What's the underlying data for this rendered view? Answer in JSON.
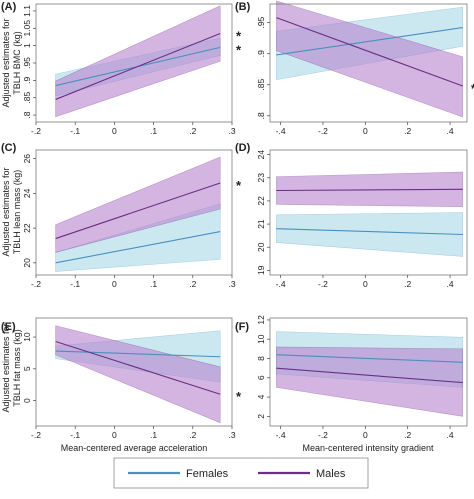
{
  "colors": {
    "females_line": "#4a8fbe",
    "females_band": "#a9d9e8",
    "males_line": "#6a2f86",
    "males_band": "#b783cf",
    "frame": "#7a7a7a"
  },
  "legend": {
    "items": [
      {
        "label": "Females",
        "color": "#4a8fbe"
      },
      {
        "label": "Males",
        "color": "#6a2f86"
      }
    ]
  },
  "chart_data": [
    {
      "panel": "(A)",
      "type": "line",
      "ylabel": "Adjusted estimates for TBLH BMC (kg)",
      "ylabel_lines": [
        "Adjusted estimates for",
        "TBLH BMC (kg)"
      ],
      "xlabel": "",
      "xlim": [
        -0.2,
        0.3
      ],
      "ylim": [
        0.78,
        1.12
      ],
      "xticks": [
        -0.2,
        -0.1,
        0,
        0.1,
        0.2,
        0.3
      ],
      "xtick_labels": [
        "-.2",
        "-.1",
        "0",
        ".1",
        ".2",
        ".3"
      ],
      "yticks": [
        0.8,
        0.85,
        0.9,
        0.95,
        1.0,
        1.05,
        1.1
      ],
      "ytick_labels": [
        ".8",
        ".85",
        ".9",
        ".95",
        "1",
        "1.05",
        "1.1"
      ],
      "series": [
        {
          "name": "Females",
          "x": [
            -0.15,
            0.27
          ],
          "y": [
            0.885,
            0.995
          ],
          "lower": [
            0.855,
            0.972
          ],
          "upper": [
            0.918,
            1.022
          ]
        },
        {
          "name": "Males",
          "x": [
            -0.15,
            0.27
          ],
          "y": [
            0.845,
            1.035
          ],
          "lower": [
            0.795,
            0.955
          ],
          "upper": [
            0.898,
            1.115
          ]
        }
      ],
      "annotations": [
        {
          "text": "*",
          "series": "Males"
        },
        {
          "text": "*",
          "series": "Females"
        }
      ]
    },
    {
      "panel": "(B)",
      "type": "line",
      "ylabel": "",
      "xlabel": "",
      "xlim": [
        -0.45,
        0.48
      ],
      "ylim": [
        0.79,
        0.98
      ],
      "xticks": [
        -0.4,
        -0.2,
        0,
        0.2,
        0.4
      ],
      "xtick_labels": [
        "-.4",
        "-.2",
        "0",
        ".2",
        ".4"
      ],
      "yticks": [
        0.8,
        0.85,
        0.9,
        0.95
      ],
      "ytick_labels": [
        ".8",
        ".85",
        ".9",
        ".95"
      ],
      "series": [
        {
          "name": "Females",
          "x": [
            -0.42,
            0.46
          ],
          "y": [
            0.898,
            0.942
          ],
          "lower": [
            0.858,
            0.912
          ],
          "upper": [
            0.936,
            0.975
          ]
        },
        {
          "name": "Males",
          "x": [
            -0.42,
            0.46
          ],
          "y": [
            0.958,
            0.848
          ],
          "lower": [
            0.905,
            0.798
          ],
          "upper": [
            0.985,
            0.895
          ]
        }
      ],
      "annotations": [
        {
          "text": "*",
          "series": "Males"
        }
      ]
    },
    {
      "panel": "(C)",
      "type": "line",
      "ylabel": "Adjusted estimates for TBLH lean mass (kg)",
      "ylabel_lines": [
        "Adjusted estimates for",
        "TBLH lean mass (kg)"
      ],
      "xlabel": "",
      "xlim": [
        -0.2,
        0.3
      ],
      "ylim": [
        19.3,
        26.5
      ],
      "xticks": [
        -0.2,
        -0.1,
        0,
        0.1,
        0.2,
        0.3
      ],
      "xtick_labels": [
        "-.2",
        "-.1",
        "0",
        ".1",
        ".2",
        ".3"
      ],
      "yticks": [
        20,
        22,
        24,
        26
      ],
      "ytick_labels": [
        "20",
        "22",
        "24",
        "26"
      ],
      "series": [
        {
          "name": "Females",
          "x": [
            -0.15,
            0.27
          ],
          "y": [
            20.0,
            21.8
          ],
          "lower": [
            19.5,
            20.2
          ],
          "upper": [
            20.6,
            23.4
          ]
        },
        {
          "name": "Males",
          "x": [
            -0.15,
            0.27
          ],
          "y": [
            21.4,
            24.6
          ],
          "lower": [
            20.6,
            23.1
          ],
          "upper": [
            22.2,
            26.1
          ]
        }
      ],
      "annotations": [
        {
          "text": "*",
          "series": "Males"
        }
      ]
    },
    {
      "panel": "(D)",
      "type": "line",
      "ylabel": "",
      "xlabel": "",
      "xlim": [
        -0.45,
        0.48
      ],
      "ylim": [
        18.8,
        24.2
      ],
      "xticks": [
        -0.4,
        -0.2,
        0,
        0.2,
        0.4
      ],
      "xtick_labels": [
        "-.4",
        "-.2",
        "0",
        ".2",
        ".4"
      ],
      "yticks": [
        19,
        20,
        21,
        22,
        23,
        24
      ],
      "ytick_labels": [
        "19",
        "20",
        "21",
        "22",
        "23",
        "24"
      ],
      "series": [
        {
          "name": "Females",
          "x": [
            -0.42,
            0.46
          ],
          "y": [
            20.8,
            20.55
          ],
          "lower": [
            20.2,
            19.6
          ],
          "upper": [
            21.4,
            21.5
          ]
        },
        {
          "name": "Males",
          "x": [
            -0.42,
            0.46
          ],
          "y": [
            22.45,
            22.5
          ],
          "lower": [
            21.85,
            21.75
          ],
          "upper": [
            23.05,
            23.25
          ]
        }
      ],
      "annotations": []
    },
    {
      "panel": "(E)",
      "type": "line",
      "ylabel": "Adjusted estimates for TBLH fat mass (kg)",
      "ylabel_lines": [
        "Adjusted estimates for",
        "TBLH fat mass (kg)"
      ],
      "xlabel": "Mean-centered average acceleration",
      "xlim": [
        -0.2,
        0.3
      ],
      "ylim": [
        -4,
        13
      ],
      "xticks": [
        -0.2,
        -0.1,
        0,
        0.1,
        0.2,
        0.3
      ],
      "xtick_labels": [
        "-.2",
        "-.1",
        "0",
        ".1",
        ".2",
        ".3"
      ],
      "yticks": [
        0,
        5,
        10
      ],
      "ytick_labels": [
        "0",
        "5",
        "10"
      ],
      "series": [
        {
          "name": "Females",
          "x": [
            -0.15,
            0.27
          ],
          "y": [
            7.8,
            6.9
          ],
          "lower": [
            6.6,
            2.9
          ],
          "upper": [
            8.6,
            11.0
          ]
        },
        {
          "name": "Males",
          "x": [
            -0.15,
            0.27
          ],
          "y": [
            9.3,
            1.0
          ],
          "lower": [
            7.2,
            -3.5
          ],
          "upper": [
            11.8,
            5.3
          ]
        }
      ],
      "annotations": [
        {
          "text": "*",
          "series": "Males"
        }
      ]
    },
    {
      "panel": "(F)",
      "type": "line",
      "ylabel": "",
      "xlabel": "Mean-centered intensity gradient",
      "xlim": [
        -0.45,
        0.48
      ],
      "ylim": [
        1.0,
        12.2
      ],
      "xticks": [
        -0.4,
        -0.2,
        0,
        0.2,
        0.4
      ],
      "xtick_labels": [
        "-.4",
        "-.2",
        "0",
        ".2",
        ".4"
      ],
      "yticks": [
        2,
        4,
        6,
        8,
        10,
        12
      ],
      "ytick_labels": [
        "2",
        "4",
        "6",
        "8",
        "10",
        "12"
      ],
      "series": [
        {
          "name": "Females",
          "x": [
            -0.42,
            0.46
          ],
          "y": [
            8.4,
            7.6
          ],
          "lower": [
            6.4,
            5.0
          ],
          "upper": [
            10.8,
            10.2
          ]
        },
        {
          "name": "Males",
          "x": [
            -0.42,
            0.46
          ],
          "y": [
            7.0,
            5.5
          ],
          "lower": [
            5.0,
            2.0
          ],
          "upper": [
            9.2,
            9.0
          ]
        }
      ],
      "annotations": []
    }
  ]
}
